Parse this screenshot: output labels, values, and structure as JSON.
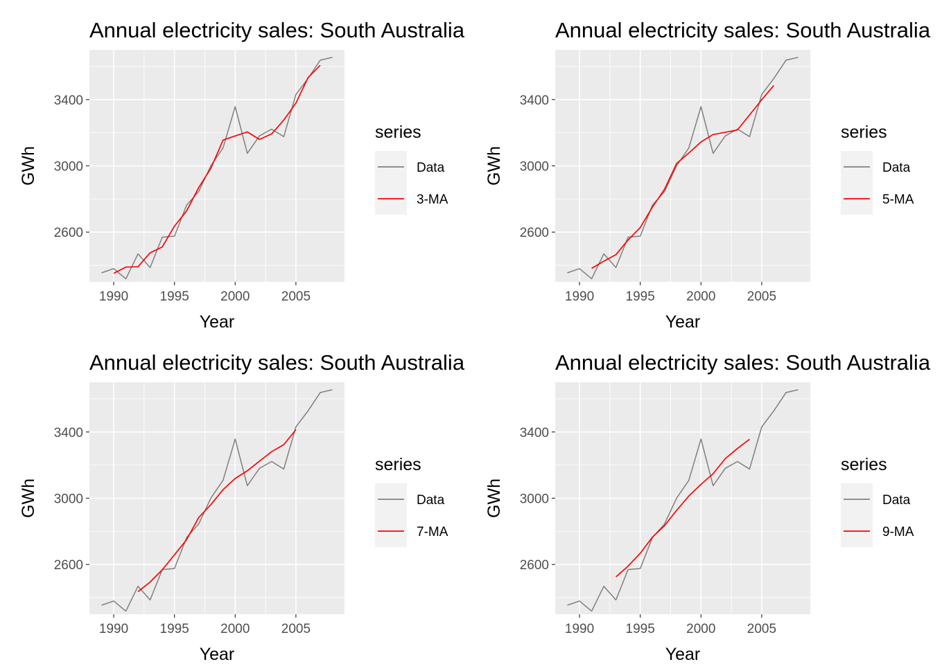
{
  "colors": {
    "data": "#7f7f7f",
    "ma": "#ff0000",
    "panel_bg": "#ebebeb",
    "grid": "#ffffff",
    "legend_key_bg": "#f2f2f2"
  },
  "chart_data": [
    {
      "type": "line",
      "title": "Annual electricity sales: South Australia",
      "xlabel": "Year",
      "ylabel": "GWh",
      "xlim": [
        1988,
        2009
      ],
      "ylim": [
        2300,
        3700
      ],
      "xticks": [
        1990,
        1995,
        2000,
        2005
      ],
      "yticks": [
        2600,
        3000,
        3400
      ],
      "grid": true,
      "legend": {
        "title": "series",
        "position": "right"
      },
      "x": [
        1989,
        1990,
        1991,
        1992,
        1993,
        1994,
        1995,
        1996,
        1997,
        1998,
        1999,
        2000,
        2001,
        2002,
        2003,
        2004,
        2005,
        2006,
        2007,
        2008
      ],
      "series": [
        {
          "name": "Data",
          "x": [
            1989,
            1990,
            1991,
            1992,
            1993,
            1994,
            1995,
            1996,
            1997,
            1998,
            1999,
            2000,
            2001,
            2002,
            2003,
            2004,
            2005,
            2006,
            2007,
            2008
          ],
          "values": [
            2354.34,
            2379.71,
            2318.52,
            2468.99,
            2386.09,
            2569.47,
            2575.72,
            2762.72,
            2844.5,
            3000.7,
            3108.1,
            3357.5,
            3075.7,
            3180.6,
            3221.6,
            3176.2,
            3430.6,
            3527.48,
            3637.89,
            3655.0
          ]
        },
        {
          "name": "3-MA",
          "x": [
            1990,
            1991,
            1992,
            1993,
            1994,
            1995,
            1996,
            1997,
            1998,
            1999,
            2000,
            2001,
            2002,
            2003,
            2004,
            2005,
            2006,
            2007
          ],
          "values": [
            2350.86,
            2389.07,
            2391.2,
            2474.85,
            2510.43,
            2635.97,
            2727.65,
            2869.31,
            2984.43,
            3155.43,
            3180.43,
            3204.6,
            3159.3,
            3192.8,
            3276.1,
            3378.1,
            3532.0,
            3606.8
          ]
        }
      ]
    },
    {
      "type": "line",
      "title": "Annual electricity sales: South Australia",
      "xlabel": "Year",
      "ylabel": "GWh",
      "xlim": [
        1988,
        2009
      ],
      "ylim": [
        2300,
        3700
      ],
      "xticks": [
        1990,
        1995,
        2000,
        2005
      ],
      "yticks": [
        2600,
        3000,
        3400
      ],
      "grid": true,
      "legend": {
        "title": "series",
        "position": "right"
      },
      "series": [
        {
          "name": "Data",
          "x": [
            1989,
            1990,
            1991,
            1992,
            1993,
            1994,
            1995,
            1996,
            1997,
            1998,
            1999,
            2000,
            2001,
            2002,
            2003,
            2004,
            2005,
            2006,
            2007,
            2008
          ],
          "values": [
            2354.34,
            2379.71,
            2318.52,
            2468.99,
            2386.09,
            2569.47,
            2575.72,
            2762.72,
            2844.5,
            3000.7,
            3108.1,
            3357.5,
            3075.7,
            3180.6,
            3221.6,
            3176.2,
            3430.6,
            3527.48,
            3637.89,
            3655.0
          ]
        },
        {
          "name": "5-MA",
          "x": [
            1991,
            1992,
            1993,
            1994,
            1995,
            1996,
            1997,
            1998,
            1999,
            2000,
            2001,
            2002,
            2003,
            2004,
            2005,
            2006
          ],
          "values": [
            2381.53,
            2424.56,
            2463.76,
            2552.6,
            2627.7,
            2750.62,
            2858.35,
            3014.7,
            3077.3,
            3144.1,
            3188.7,
            3202.3,
            3216.9,
            3307.3,
            3398.8,
            3485.4
          ]
        }
      ]
    },
    {
      "type": "line",
      "title": "Annual electricity sales: South Australia",
      "xlabel": "Year",
      "ylabel": "GWh",
      "xlim": [
        1988,
        2009
      ],
      "ylim": [
        2300,
        3700
      ],
      "xticks": [
        1990,
        1995,
        2000,
        2005
      ],
      "yticks": [
        2600,
        3000,
        3400
      ],
      "grid": true,
      "legend": {
        "title": "series",
        "position": "right"
      },
      "series": [
        {
          "name": "Data",
          "x": [
            1989,
            1990,
            1991,
            1992,
            1993,
            1994,
            1995,
            1996,
            1997,
            1998,
            1999,
            2000,
            2001,
            2002,
            2003,
            2004,
            2005,
            2006,
            2007,
            2008
          ],
          "values": [
            2354.34,
            2379.71,
            2318.52,
            2468.99,
            2386.09,
            2569.47,
            2575.72,
            2762.72,
            2844.5,
            3000.7,
            3108.1,
            3357.5,
            3075.7,
            3180.6,
            3221.6,
            3176.2,
            3430.6,
            3527.48,
            3637.89,
            3655.0
          ]
        },
        {
          "name": "7-MA",
          "x": [
            1992,
            1993,
            1994,
            1995,
            1996,
            1997,
            1998,
            1999,
            2000,
            2001,
            2002,
            2003,
            2004,
            2005
          ],
          "values": [
            2436.1,
            2494.5,
            2568.0,
            2658.6,
            2749.6,
            2883.7,
            2961.2,
            3052.0,
            3119.0,
            3165.5,
            3223.0,
            3281.0,
            3323.4,
            3413.5
          ]
        }
      ]
    },
    {
      "type": "line",
      "title": "Annual electricity sales: South Australia",
      "xlabel": "Year",
      "ylabel": "GWh",
      "xlim": [
        1988,
        2009
      ],
      "ylim": [
        2300,
        3700
      ],
      "xticks": [
        1990,
        1995,
        2000,
        2005
      ],
      "yticks": [
        2600,
        3000,
        3400
      ],
      "grid": true,
      "legend": {
        "title": "series",
        "position": "right"
      },
      "series": [
        {
          "name": "Data",
          "x": [
            1989,
            1990,
            1991,
            1992,
            1993,
            1994,
            1995,
            1996,
            1997,
            1998,
            1999,
            2000,
            2001,
            2002,
            2003,
            2004,
            2005,
            2006,
            2007,
            2008
          ],
          "values": [
            2354.34,
            2379.71,
            2318.52,
            2468.99,
            2386.09,
            2569.47,
            2575.72,
            2762.72,
            2844.5,
            3000.7,
            3108.1,
            3357.5,
            3075.7,
            3180.6,
            3221.6,
            3176.2,
            3430.6,
            3527.48,
            3637.89,
            3655.0
          ]
        },
        {
          "name": "9-MA",
          "x": [
            1993,
            1994,
            1995,
            1996,
            1997,
            1998,
            1999,
            2000,
            2001,
            2002,
            2003,
            2004
          ],
          "values": [
            2525.2,
            2590.0,
            2667.6,
            2765.0,
            2834.0,
            2927.0,
            3013.3,
            3083.4,
            3148.0,
            3238.5,
            3300.0,
            3356.0
          ]
        }
      ]
    }
  ]
}
